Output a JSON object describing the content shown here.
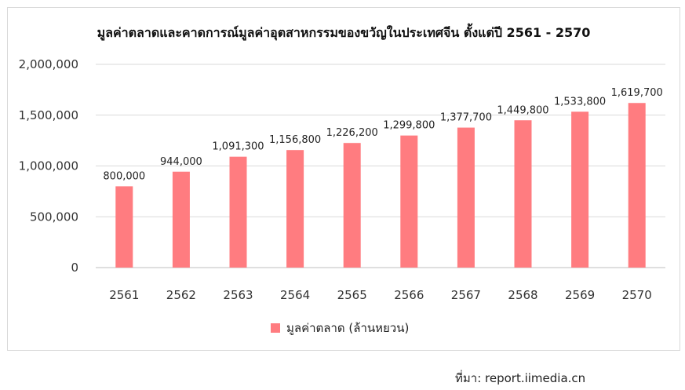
{
  "chart_data": {
    "type": "bar",
    "title": "มูลค่าตลาดและคาดการณ์มูลค่าอุตสาหกรรมของขวัญในประเทศจีน ตั้งแต่ปี 2561 - 2570",
    "categories": [
      "2561",
      "2562",
      "2563",
      "2564",
      "2565",
      "2566",
      "2567",
      "2568",
      "2569",
      "2570"
    ],
    "series": [
      {
        "name": "มูลค่าตลาด (ล้านหยวน)",
        "values": [
          800000,
          944000,
          1091300,
          1156800,
          1226200,
          1299800,
          1377700,
          1449800,
          1533800,
          1619700
        ],
        "labels": [
          "800,000",
          "944,000",
          "1,091,300",
          "1,156,800",
          "1,226,200",
          "1,299,800",
          "1,377,700",
          "1,449,800",
          "1,533,800",
          "1,619,700"
        ],
        "color": "#ff7c80"
      }
    ],
    "ylim": [
      0,
      2000000
    ],
    "yticks": [
      0,
      500000,
      1000000,
      1500000,
      2000000
    ],
    "ytick_labels": [
      "0",
      "500,000",
      "1,000,000",
      "1,500,000",
      "2,000,000"
    ],
    "grid": true,
    "legend_position": "bottom"
  },
  "source_text": "ที่มา: report.iimedia.cn"
}
